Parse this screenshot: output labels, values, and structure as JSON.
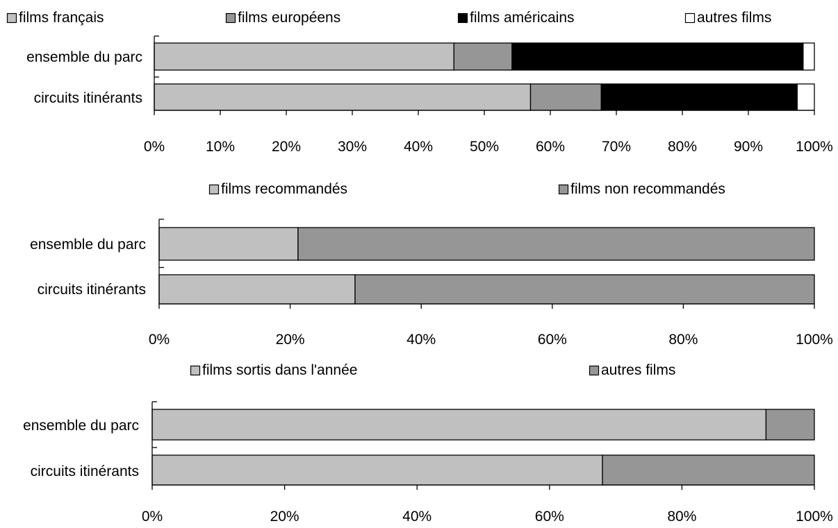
{
  "chart_data": [
    {
      "type": "bar",
      "orientation": "horizontal",
      "stacked": true,
      "categories": [
        "ensemble du parc",
        "circuits itinérants"
      ],
      "series": [
        {
          "name": "films français",
          "color": "#c0c0c0",
          "values": [
            45.4,
            57.0
          ]
        },
        {
          "name": "films européens",
          "color": "#969696",
          "values": [
            8.8,
            10.7
          ]
        },
        {
          "name": "films américains",
          "color": "#000000",
          "values": [
            44.1,
            29.7
          ]
        },
        {
          "name": "autres films",
          "color": "#ffffff",
          "values": [
            1.7,
            2.6
          ]
        }
      ],
      "xlim": [
        0,
        100
      ],
      "xticks": [
        "0%",
        "10%",
        "20%",
        "30%",
        "40%",
        "50%",
        "60%",
        "70%",
        "80%",
        "90%",
        "100%"
      ],
      "legend": "top",
      "grid": false
    },
    {
      "type": "bar",
      "orientation": "horizontal",
      "stacked": true,
      "categories": [
        "ensemble du parc",
        "circuits itinérants"
      ],
      "series": [
        {
          "name": "films recommandés",
          "color": "#c0c0c0",
          "values": [
            21.2,
            29.9
          ]
        },
        {
          "name": "films non recommandés",
          "color": "#969696",
          "values": [
            78.8,
            70.1
          ]
        }
      ],
      "xlim": [
        0,
        100
      ],
      "xticks": [
        "0%",
        "20%",
        "40%",
        "60%",
        "80%",
        "100%"
      ],
      "legend": "top",
      "grid": false
    },
    {
      "type": "bar",
      "orientation": "horizontal",
      "stacked": true,
      "categories": [
        "ensemble du parc",
        "circuits itinérants"
      ],
      "series": [
        {
          "name": "films sortis dans l'année",
          "color": "#c0c0c0",
          "values": [
            92.7,
            68.0
          ]
        },
        {
          "name": "autres films",
          "color": "#969696",
          "values": [
            7.3,
            32.0
          ]
        }
      ],
      "xlim": [
        0,
        100
      ],
      "xticks": [
        "0%",
        "20%",
        "40%",
        "60%",
        "80%",
        "100%"
      ],
      "legend": "top",
      "grid": false
    }
  ]
}
